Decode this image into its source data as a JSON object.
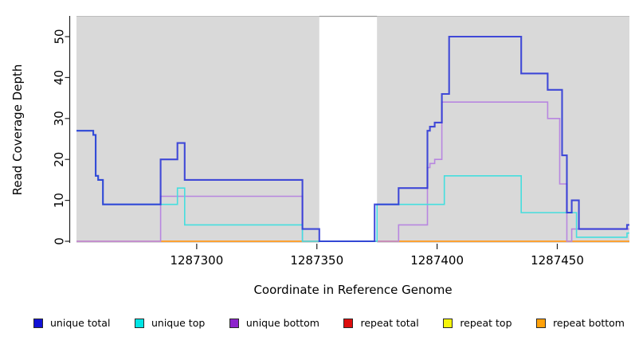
{
  "chart_data": {
    "type": "line",
    "subtype": "step-coverage",
    "title": "",
    "xlabel": "Coordinate in Reference Genome",
    "ylabel": "Read Coverage Depth",
    "xlim": [
      1287250,
      1287480
    ],
    "ylim": [
      0,
      55
    ],
    "xticks": [
      1287300,
      1287350,
      1287400,
      1287450
    ],
    "yticks": [
      0,
      10,
      20,
      30,
      40,
      50
    ],
    "grid": false,
    "legend_position": "bottom",
    "plot_bg_color": "#d9d9d9",
    "gap_band": {
      "from": 1287351,
      "to": 1287375,
      "color": "#ffffff",
      "top_edge_color": "#999999"
    },
    "axis_color": "#222222",
    "series": [
      {
        "name": "repeat top",
        "line_color": "#ffef3d",
        "width": 1.6,
        "points": [
          [
            1287250,
            0
          ]
        ]
      },
      {
        "name": "repeat total",
        "line_color": "#e87f9f",
        "width": 1.6,
        "points": [
          [
            1287250,
            0
          ]
        ]
      },
      {
        "name": "repeat bottom",
        "line_color": "#ffa126",
        "width": 1.8,
        "points": [
          [
            1287285,
            0
          ]
        ]
      },
      {
        "name": "unique bottom",
        "line_color": "#b886e0",
        "width": 1.6,
        "points": [
          [
            1287250,
            0
          ],
          [
            1287285,
            11
          ],
          [
            1287344,
            0
          ],
          [
            1287384,
            4
          ],
          [
            1287396,
            18
          ],
          [
            1287397,
            19
          ],
          [
            1287399,
            20
          ],
          [
            1287402,
            34
          ],
          [
            1287446,
            30
          ],
          [
            1287451,
            14
          ],
          [
            1287454,
            0
          ],
          [
            1287456,
            3
          ]
        ]
      },
      {
        "name": "unique top",
        "line_color": "#45dede",
        "width": 1.6,
        "points": [
          [
            1287250,
            27
          ],
          [
            1287257,
            26
          ],
          [
            1287258,
            16
          ],
          [
            1287259,
            15
          ],
          [
            1287261,
            9
          ],
          [
            1287292,
            13
          ],
          [
            1287295,
            4
          ],
          [
            1287344,
            0
          ],
          [
            1287375,
            9
          ],
          [
            1287403,
            16
          ],
          [
            1287435,
            7
          ],
          [
            1287458,
            1
          ],
          [
            1287479,
            2
          ]
        ]
      },
      {
        "name": "unique total",
        "line_color": "#2a34d6",
        "opacity": 0.88,
        "width": 2.1,
        "points": [
          [
            1287250,
            27
          ],
          [
            1287257,
            26
          ],
          [
            1287258,
            16
          ],
          [
            1287259,
            15
          ],
          [
            1287261,
            9
          ],
          [
            1287285,
            20
          ],
          [
            1287292,
            24
          ],
          [
            1287295,
            15
          ],
          [
            1287344,
            3
          ],
          [
            1287351,
            0
          ],
          [
            1287374,
            9
          ],
          [
            1287384,
            13
          ],
          [
            1287396,
            27
          ],
          [
            1287397,
            28
          ],
          [
            1287399,
            29
          ],
          [
            1287402,
            36
          ],
          [
            1287405,
            50
          ],
          [
            1287435,
            41
          ],
          [
            1287446,
            37
          ],
          [
            1287452,
            21
          ],
          [
            1287454,
            7
          ],
          [
            1287456,
            10
          ],
          [
            1287459,
            3
          ],
          [
            1287479,
            4
          ]
        ]
      }
    ]
  },
  "legend": {
    "items": [
      {
        "label": "unique total",
        "color": "#1111d6"
      },
      {
        "label": "unique top",
        "color": "#00e5e5"
      },
      {
        "label": "unique bottom",
        "color": "#8d23cc"
      },
      {
        "label": "repeat total",
        "color": "#dd0d0d"
      },
      {
        "label": "repeat top",
        "color": "#f5f50a"
      },
      {
        "label": "repeat bottom",
        "color": "#ffa10a"
      }
    ]
  }
}
